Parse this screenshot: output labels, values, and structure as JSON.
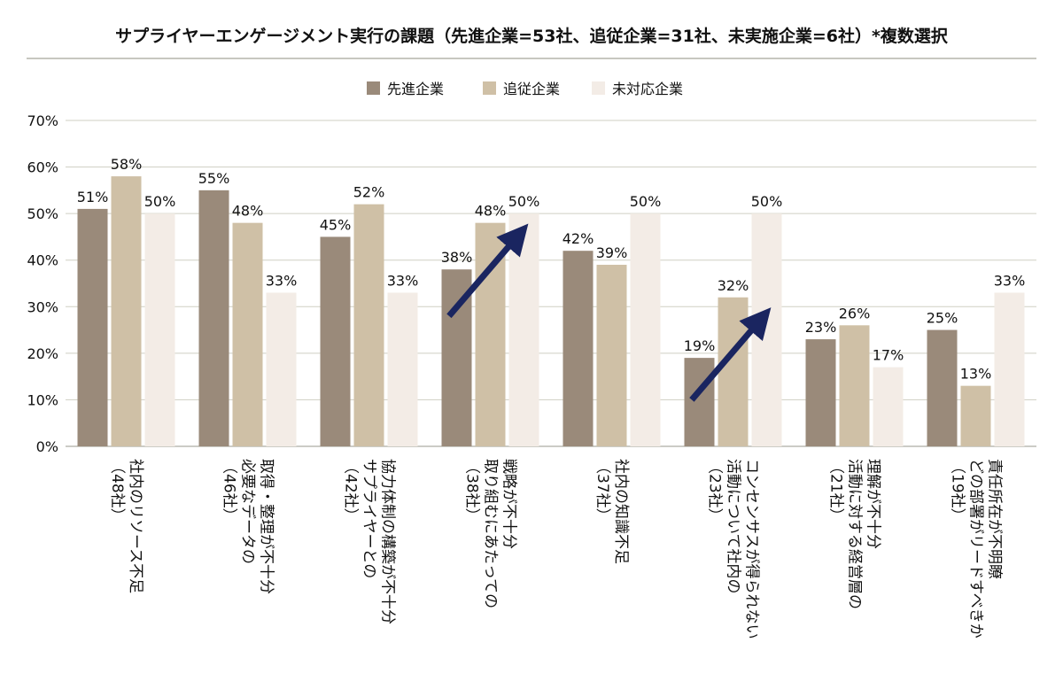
{
  "chart_data": {
    "type": "bar",
    "title": "サプライヤーエンゲージメント実行の課題（先進企業=53社、追従企業=31社、未実施企業=6社）*複数選択",
    "categories": [
      {
        "lines": [
          "社内のリソース不足"
        ],
        "count": "（48社）"
      },
      {
        "lines": [
          "必要なデータの",
          "取得・整理が不十分"
        ],
        "count": "（46社）"
      },
      {
        "lines": [
          "サプライヤーとの",
          "協力体制の構築が不十分"
        ],
        "count": "（42社）"
      },
      {
        "lines": [
          "取り組むにあたっての",
          "戦略が不十分"
        ],
        "count": "（38社）"
      },
      {
        "lines": [
          "社内の知識不足"
        ],
        "count": "（37社）"
      },
      {
        "lines": [
          "活動について社内の",
          "コンセンサスが得られない"
        ],
        "count": "（23社）"
      },
      {
        "lines": [
          "活動に対する経営層の",
          "理解が不十分"
        ],
        "count": "（21社）"
      },
      {
        "lines": [
          "どの部署がリードすべきか",
          "責任所在が不明瞭"
        ],
        "count": "（19社）"
      }
    ],
    "series": [
      {
        "name": "先進企業",
        "color": "#9a8a7a",
        "values": [
          51,
          55,
          45,
          38,
          42,
          19,
          23,
          25
        ]
      },
      {
        "name": "追従企業",
        "color": "#cfc0a6",
        "values": [
          58,
          48,
          52,
          48,
          39,
          32,
          26,
          13
        ]
      },
      {
        "name": "未対応企業",
        "color": "#f3ece6",
        "values": [
          50,
          33,
          33,
          50,
          50,
          50,
          17,
          33
        ]
      }
    ],
    "value_suffix": "%",
    "ylim": [
      0,
      70
    ],
    "yticks": [
      0,
      10,
      20,
      30,
      40,
      50,
      60,
      70
    ],
    "grid": true,
    "legend_position": "top-center",
    "annotations": [
      {
        "type": "arrow",
        "color": "#1a2560",
        "category_index": 3,
        "from_value": 28,
        "to_value": 45
      },
      {
        "type": "arrow",
        "color": "#1a2560",
        "category_index": 5,
        "from_value": 10,
        "to_value": 27
      }
    ]
  }
}
